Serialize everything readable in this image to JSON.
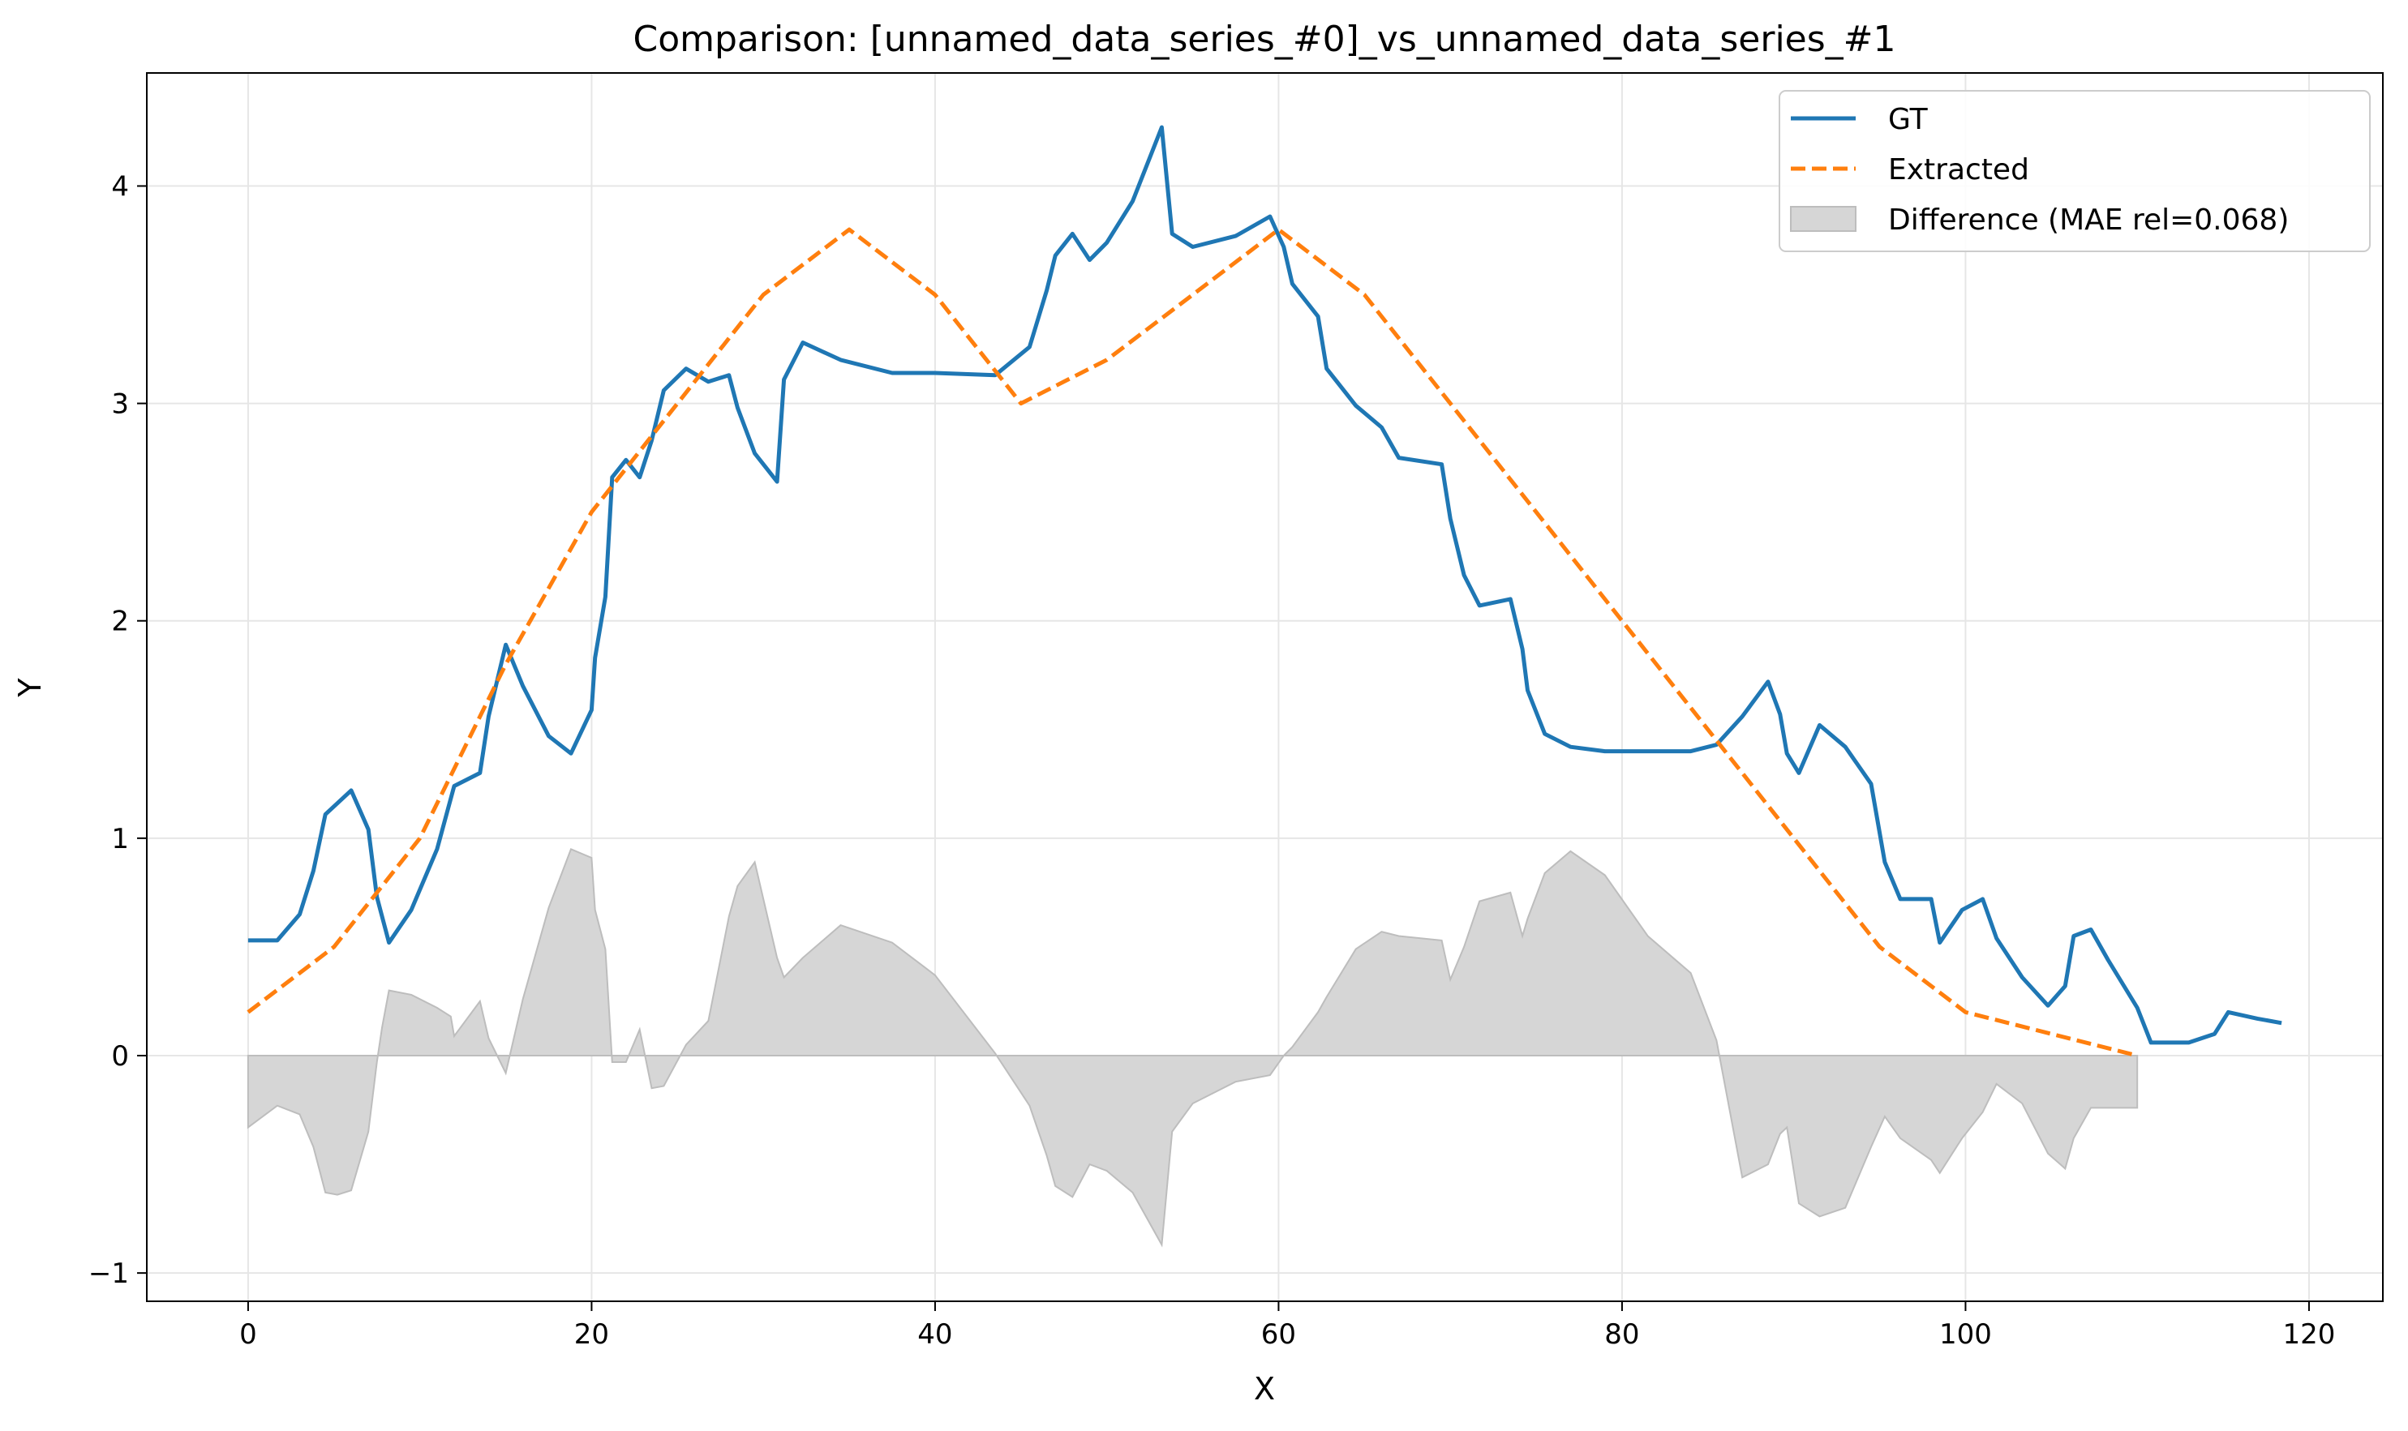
{
  "chart_data": {
    "type": "line",
    "title": "Comparison: [unnamed_data_series_#0]_vs_unnamed_data_series_#1",
    "xlabel": "X",
    "ylabel": "Y",
    "xlim": [
      -5.9,
      124.3
    ],
    "ylim": [
      -1.13,
      4.52
    ],
    "xticks": [
      0,
      20,
      40,
      60,
      80,
      100,
      120
    ],
    "yticks": [
      -1,
      0,
      1,
      2,
      3,
      4
    ],
    "ytick_labels": [
      "−1",
      "0",
      "1",
      "2",
      "3",
      "4"
    ],
    "grid": true,
    "legend_position": "top-right",
    "series": [
      {
        "name": "GT",
        "color": "#1f77b4",
        "style": "solid",
        "x": [
          0,
          1.7,
          3.0,
          3.8,
          4.5,
          6.0,
          7.0,
          7.5,
          8.2,
          9.5,
          11.0,
          12.0,
          13.5,
          14.0,
          15.0,
          16.0,
          17.5,
          18.8,
          20.0,
          20.2,
          20.8,
          21.2,
          22.0,
          22.8,
          23.5,
          24.2,
          25.5,
          26.8,
          28.0,
          28.5,
          29.5,
          30.8,
          31.2,
          32.3,
          34.5,
          37.5,
          40.0,
          43.5,
          45.5,
          46.5,
          47.0,
          48.0,
          49.0,
          50.0,
          51.5,
          53.2,
          53.8,
          55.0,
          57.5,
          59.5,
          60.3,
          60.8,
          62.3,
          62.8,
          64.5,
          66.0,
          67.0,
          69.5,
          70.0,
          70.8,
          71.7,
          73.5,
          74.2,
          74.5,
          75.5,
          77.0,
          79.0,
          81.5,
          84.0,
          85.5,
          87.0,
          88.5,
          89.2,
          89.6,
          90.3,
          91.5,
          93.0,
          94.5,
          95.3,
          96.2,
          98.0,
          98.5,
          99.8,
          101.0,
          101.8,
          103.3,
          104.8,
          105.8,
          106.3,
          107.3,
          108.3,
          110.0,
          110.8,
          113.0,
          114.5,
          115.3,
          117.0,
          118.4
        ],
        "y": [
          0.53,
          0.53,
          0.65,
          0.85,
          1.11,
          1.22,
          1.04,
          0.73,
          0.52,
          0.67,
          0.95,
          1.24,
          1.3,
          1.56,
          1.89,
          1.7,
          1.47,
          1.39,
          1.59,
          1.83,
          2.11,
          2.66,
          2.74,
          2.66,
          2.83,
          3.06,
          3.16,
          3.1,
          3.13,
          2.98,
          2.77,
          2.64,
          3.11,
          3.28,
          3.2,
          3.14,
          3.14,
          3.13,
          3.26,
          3.52,
          3.68,
          3.78,
          3.66,
          3.74,
          3.93,
          4.27,
          3.78,
          3.72,
          3.77,
          3.86,
          3.72,
          3.55,
          3.4,
          3.16,
          2.99,
          2.89,
          2.75,
          2.72,
          2.47,
          2.21,
          2.07,
          2.1,
          1.87,
          1.68,
          1.48,
          1.42,
          1.4,
          1.4,
          1.4,
          1.43,
          1.56,
          1.72,
          1.57,
          1.39,
          1.3,
          1.52,
          1.42,
          1.25,
          0.89,
          0.72,
          0.72,
          0.52,
          0.67,
          0.72,
          0.54,
          0.36,
          0.23,
          0.32,
          0.55,
          0.58,
          0.44,
          0.22,
          0.06,
          0.06,
          0.1,
          0.2,
          0.17,
          0.15
        ]
      },
      {
        "name": "Extracted",
        "color": "#ff7f0e",
        "style": "dashed",
        "x": [
          0,
          5.0,
          10.0,
          15.0,
          20.0,
          25.0,
          30.0,
          35.0,
          40.0,
          45.0,
          50.0,
          55.0,
          60.0,
          65.0,
          70.0,
          75.0,
          80.0,
          85.0,
          90.0,
          95.0,
          100.0,
          105.0,
          110.0
        ],
        "y": [
          0.2,
          0.5,
          1.0,
          1.8,
          2.5,
          3.0,
          3.5,
          3.8,
          3.5,
          3.0,
          3.2,
          3.5,
          3.8,
          3.5,
          3.0,
          2.5,
          2.0,
          1.5,
          1.0,
          0.5,
          0.2,
          0.1,
          0.0
        ]
      }
    ],
    "difference": {
      "name": "Difference (MAE rel=0.068)",
      "fill_color": "#d6d6d6",
      "edge_color": "#bdbdbd",
      "x": [
        0,
        1.7,
        3.0,
        3.8,
        4.5,
        5.2,
        6.0,
        7.0,
        7.5,
        7.8,
        8.2,
        9.5,
        11.0,
        11.8,
        12.0,
        13.5,
        14.0,
        15.0,
        16.0,
        17.5,
        18.8,
        20.0,
        20.2,
        20.8,
        21.2,
        22.0,
        22.8,
        23.5,
        24.2,
        25.5,
        26.8,
        28.0,
        28.5,
        29.5,
        30.8,
        31.2,
        32.3,
        34.5,
        37.5,
        40.0,
        43.5,
        45.5,
        46.5,
        47.0,
        48.0,
        49.0,
        50.0,
        51.5,
        53.2,
        53.8,
        55.0,
        57.5,
        59.5,
        60.3,
        60.8,
        62.3,
        62.8,
        64.5,
        66.0,
        67.0,
        69.5,
        70.0,
        70.8,
        71.7,
        73.5,
        74.2,
        74.5,
        75.5,
        77.0,
        79.0,
        81.5,
        84.0,
        85.5,
        87.0,
        88.5,
        89.2,
        89.6,
        90.3,
        91.5,
        93.0,
        94.5,
        95.3,
        96.2,
        98.0,
        98.5,
        99.8,
        101.0,
        101.8,
        103.3,
        104.8,
        105.8,
        106.3,
        107.3,
        108.3,
        110.0
      ],
      "y": [
        -0.33,
        -0.23,
        -0.27,
        -0.42,
        -0.63,
        -0.64,
        -0.62,
        -0.35,
        -0.03,
        0.13,
        0.3,
        0.28,
        0.22,
        0.18,
        0.09,
        0.25,
        0.08,
        -0.08,
        0.26,
        0.68,
        0.95,
        0.91,
        0.67,
        0.49,
        -0.03,
        -0.03,
        0.12,
        -0.15,
        -0.14,
        0.05,
        0.16,
        0.64,
        0.78,
        0.89,
        0.45,
        0.36,
        0.45,
        0.6,
        0.52,
        0.37,
        0.01,
        -0.23,
        -0.46,
        -0.6,
        -0.65,
        -0.5,
        -0.53,
        -0.63,
        -0.87,
        -0.35,
        -0.22,
        -0.12,
        -0.09,
        0.0,
        0.04,
        0.2,
        0.27,
        0.49,
        0.57,
        0.55,
        0.53,
        0.35,
        0.5,
        0.71,
        0.75,
        0.55,
        0.63,
        0.84,
        0.94,
        0.83,
        0.55,
        0.38,
        0.07,
        -0.56,
        -0.5,
        -0.36,
        -0.33,
        -0.68,
        -0.74,
        -0.7,
        -0.42,
        -0.28,
        -0.38,
        -0.48,
        -0.54,
        -0.38,
        -0.26,
        -0.13,
        -0.22,
        -0.45,
        -0.52,
        -0.38,
        -0.24,
        -0.24,
        -0.24
      ]
    }
  }
}
